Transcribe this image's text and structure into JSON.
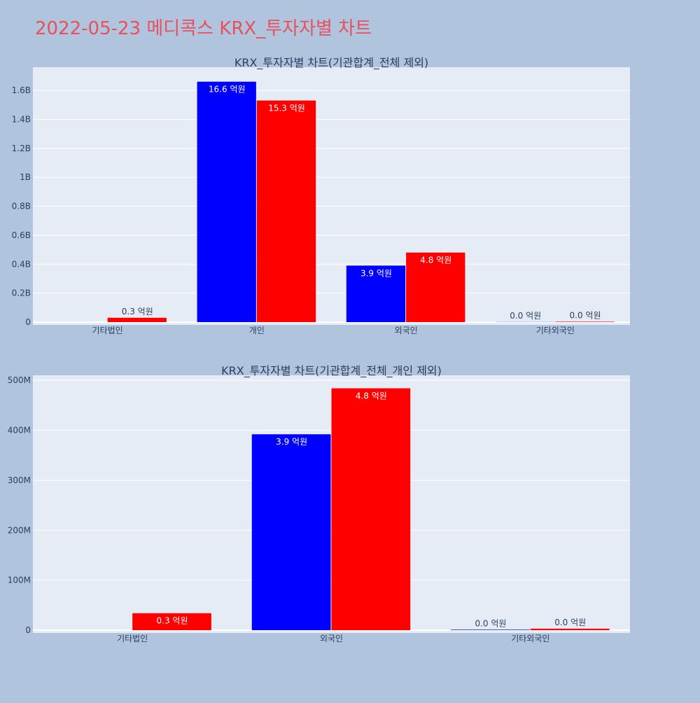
{
  "page": {
    "title": "2022-05-23 메디콕스 KRX_투자자별 차트",
    "title_color": "#e8505b",
    "background": "#b0c4de",
    "plot_background": "#e5ecf6"
  },
  "colors": {
    "series_a": "#0000ff",
    "series_b": "#ff0000"
  },
  "chart_data": [
    {
      "type": "bar",
      "title": "KRX_투자자별 차트(기관합계_전체 제외)",
      "categories": [
        "기타법인",
        "개인",
        "외국인",
        "기타외국인"
      ],
      "series": [
        {
          "values": [
            0,
            1660000000,
            390000000,
            1000000
          ],
          "labels": [
            "",
            "16.6 억원",
            "3.9 억원",
            "0.0 억원"
          ]
        },
        {
          "values": [
            30000000,
            1530000000,
            480000000,
            3000000
          ],
          "labels": [
            "0.3 억원",
            "15.3 억원",
            "4.8 억원",
            "0.0 억원"
          ]
        }
      ],
      "ylim": [
        0,
        1760000000
      ],
      "yticks": [
        0,
        200000000,
        400000000,
        600000000,
        800000000,
        1000000000,
        1200000000,
        1400000000,
        1600000000
      ],
      "ytick_labels": [
        "0",
        "0.2B",
        "0.4B",
        "0.6B",
        "0.8B",
        "1B",
        "1.2B",
        "1.4B",
        "1.6B"
      ],
      "grid": true,
      "legend": "none"
    },
    {
      "type": "bar",
      "title": "KRX_투자자별 차트(기관합계_전체_개인 제외)",
      "categories": [
        "기타법인",
        "외국인",
        "기타외국인"
      ],
      "series": [
        {
          "values": [
            0,
            392000000,
            1000000
          ],
          "labels": [
            "",
            "3.9 억원",
            "0.0 억원"
          ]
        },
        {
          "values": [
            34000000,
            484000000,
            3000000
          ],
          "labels": [
            "0.3 억원",
            "4.8 억원",
            "0.0 억원"
          ]
        }
      ],
      "ylim": [
        0,
        510000000
      ],
      "yticks": [
        0,
        100000000,
        200000000,
        300000000,
        400000000,
        500000000
      ],
      "ytick_labels": [
        "0",
        "100M",
        "200M",
        "300M",
        "400M",
        "500M"
      ],
      "grid": true,
      "legend": "none"
    }
  ]
}
